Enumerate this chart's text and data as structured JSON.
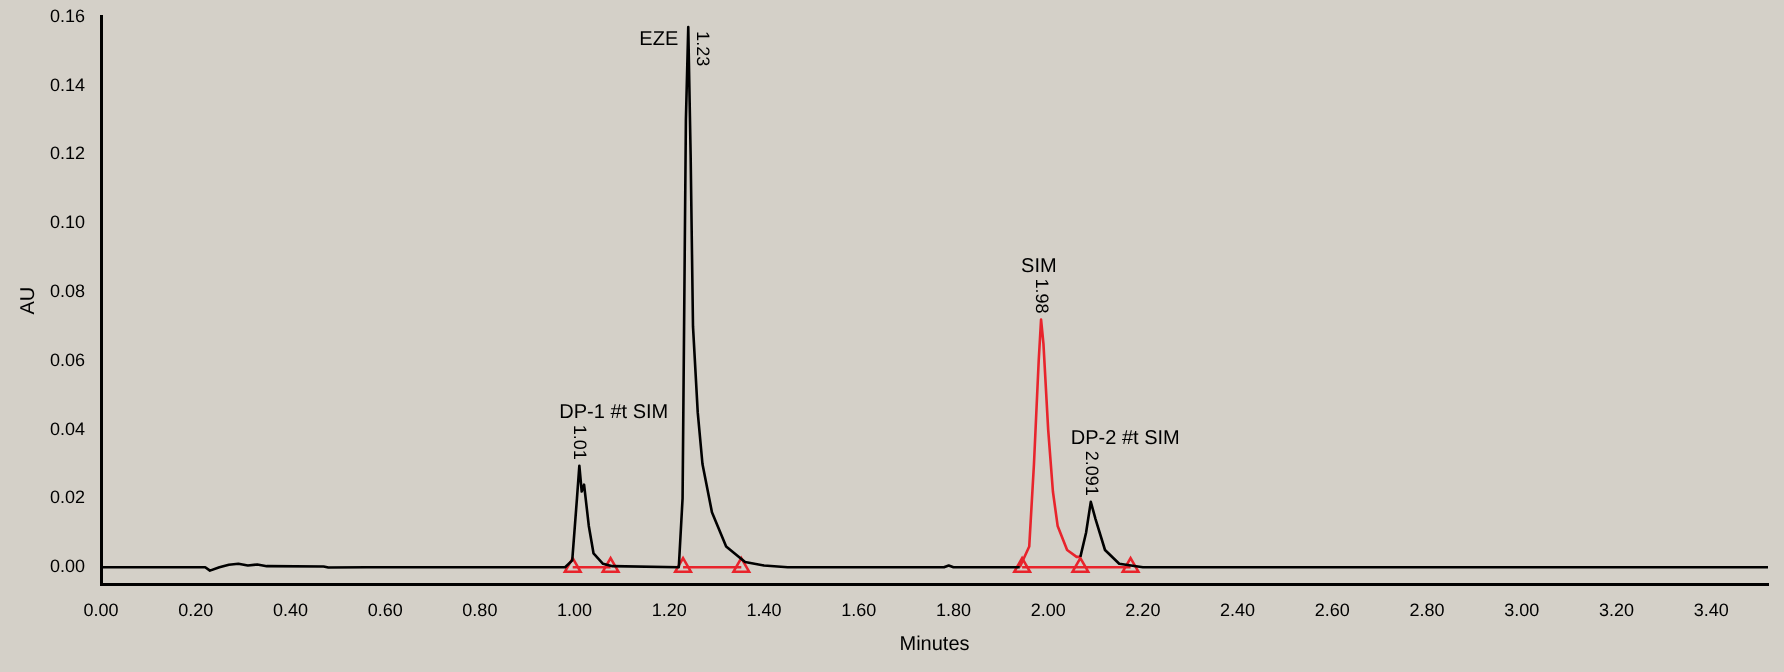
{
  "chart_data": {
    "type": "line",
    "xlabel": "Minutes",
    "ylabel": "AU",
    "xlim": [
      0,
      3.52
    ],
    "ylim": [
      -0.005,
      0.16
    ],
    "xticks": [
      {
        "value": 0,
        "label": "0.00"
      },
      {
        "value": 0.2,
        "label": "0.20"
      },
      {
        "value": 0.4,
        "label": "0.40"
      },
      {
        "value": 0.6,
        "label": "0.60"
      },
      {
        "value": 0.8,
        "label": "0.80"
      },
      {
        "value": 1,
        "label": "1.00"
      },
      {
        "value": 1.2,
        "label": "1.20"
      },
      {
        "value": 1.4,
        "label": "1.40"
      },
      {
        "value": 1.6,
        "label": "1.60"
      },
      {
        "value": 1.8,
        "label": "1.80"
      },
      {
        "value": 2,
        "label": "2.00"
      },
      {
        "value": 2.2,
        "label": "2.20"
      },
      {
        "value": 2.4,
        "label": "2.40"
      },
      {
        "value": 2.6,
        "label": "2.60"
      },
      {
        "value": 2.8,
        "label": "2.80"
      },
      {
        "value": 3,
        "label": "3.00"
      },
      {
        "value": 3.2,
        "label": "3.20"
      },
      {
        "value": 3.4,
        "label": "3.40"
      }
    ],
    "yticks": [
      {
        "value": 0,
        "label": "0.00"
      },
      {
        "value": 0.02,
        "label": "0.02"
      },
      {
        "value": 0.04,
        "label": "0.04"
      },
      {
        "value": 0.06,
        "label": "0.06"
      },
      {
        "value": 0.08,
        "label": "0.08"
      },
      {
        "value": 0.1,
        "label": "0.10"
      },
      {
        "value": 0.12,
        "label": "0.12"
      },
      {
        "value": 0.14,
        "label": "0.14"
      },
      {
        "value": 0.16,
        "label": "0.16"
      }
    ],
    "grid": false,
    "legend": false,
    "marker": "none",
    "line_style": "solid",
    "series": [
      {
        "color": "#000000",
        "x": [
          0,
          0.22,
          0.23,
          0.25,
          0.27,
          0.29,
          0.31,
          0.33,
          0.35,
          0.47,
          0.48,
          0.56,
          0.98,
          0.995,
          1.005,
          1.01,
          1.015,
          1.02,
          1.03,
          1.04,
          1.06,
          1.08,
          1.22,
          1.228,
          1.235,
          1.24,
          1.245,
          1.25,
          1.26,
          1.27,
          1.29,
          1.32,
          1.36,
          1.4,
          1.45,
          1.78,
          1.79,
          1.8,
          1.94,
          2.0,
          2.068,
          2.08,
          2.09,
          2.1,
          2.12,
          2.15,
          2.2,
          3.52
        ],
        "values": [
          0,
          0,
          -0.001,
          0,
          0.0007,
          0.001,
          0.0005,
          0.0008,
          0.0003,
          0.0002,
          -0.0001,
          0,
          0,
          0.002,
          0.02,
          0.0295,
          0.022,
          0.024,
          0.012,
          0.004,
          0.001,
          0.0003,
          0,
          0.02,
          0.13,
          0.157,
          0.12,
          0.07,
          0.045,
          0.03,
          0.016,
          0.006,
          0.0015,
          0.0005,
          0,
          0,
          0.0005,
          0,
          0,
          null,
          0.003,
          0.01,
          0.019,
          0.014,
          0.005,
          0.001,
          0,
          0
        ]
      },
      {
        "color": "#e8242c",
        "x": [
          1.94,
          1.96,
          1.97,
          1.98,
          1.985,
          1.99,
          2.0,
          2.01,
          2.02,
          2.04,
          2.06,
          2.068
        ],
        "values": [
          0,
          0.006,
          0.03,
          0.06,
          0.072,
          0.065,
          0.04,
          0.022,
          0.012,
          0.005,
          0.003,
          0.003
        ]
      },
      {
        "color": "#e8242c",
        "marker": "triangle",
        "x": [
          0.996,
          1.076,
          1.15,
          1.229,
          1.352,
          1.6,
          1.945,
          2.068,
          2.174
        ],
        "values": [
          0,
          0,
          null,
          0,
          0,
          null,
          0,
          0,
          0
        ]
      }
    ],
    "annotations": [
      {
        "text": "1.01",
        "x": 1.01,
        "y": 0.0295
      },
      {
        "text": "DP-1 #t SIM",
        "x": 1.01,
        "y": 0.0295
      },
      {
        "text": "1.23",
        "x": 1.24,
        "y": 0.157
      },
      {
        "text": "EZE",
        "x": 1.24,
        "y": 0.157
      },
      {
        "text": "1.98",
        "x": 1.985,
        "y": 0.072
      },
      {
        "text": "SIM",
        "x": 1.985,
        "y": 0.072
      },
      {
        "text": "2.091",
        "x": 2.09,
        "y": 0.019
      },
      {
        "text": "DP-2 #t SIM",
        "x": 2.09,
        "y": 0.019
      }
    ]
  }
}
